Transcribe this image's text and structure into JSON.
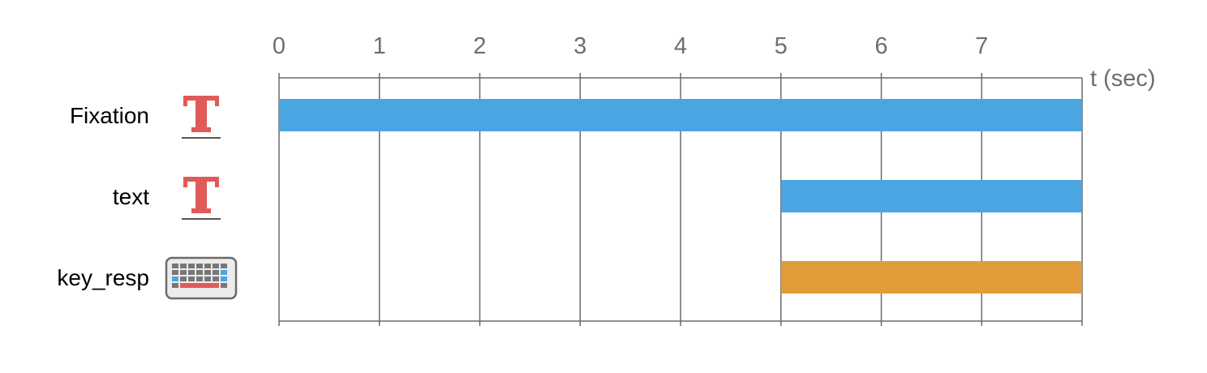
{
  "axis": {
    "unit_label": "t (sec)",
    "ticks": [
      "0",
      "1",
      "2",
      "3",
      "4",
      "5",
      "6",
      "7"
    ],
    "tick_values": [
      0,
      1,
      2,
      3,
      4,
      5,
      6,
      7
    ],
    "range": [
      0,
      8
    ]
  },
  "components": [
    {
      "name": "Fixation",
      "icon": "text-component-icon",
      "start": 0,
      "end": 8,
      "color": "#4aa6e2"
    },
    {
      "name": "text",
      "icon": "text-component-icon",
      "start": 5,
      "end": 8,
      "color": "#4aa6e2"
    },
    {
      "name": "key_resp",
      "icon": "keyboard-icon",
      "start": 5,
      "end": 8,
      "color": "#e09c38"
    }
  ],
  "colors": {
    "text_icon": "#e05a59",
    "grid": "#6a6a6a",
    "axis_text": "#6e6e6e",
    "label_text": "#000000"
  }
}
